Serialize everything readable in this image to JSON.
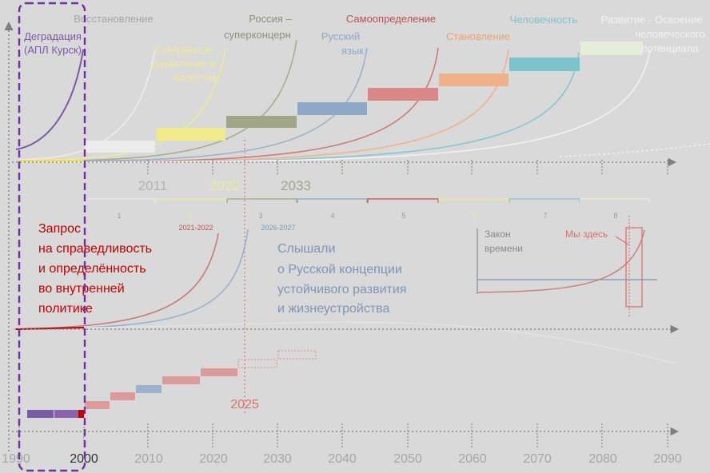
{
  "stages": {
    "degradation": "Деградация",
    "degradation_note": "(АПЛ Курск)",
    "restoration": "Восстановление",
    "sovereignty_l1": "Суверенное",
    "sovereignty_l2": "управление и",
    "sovereignty_l3": "развитие",
    "russia_l1": "Россия –",
    "russia_l2": "суперконцерн",
    "language_l1": "Русский",
    "language_l2": "язык",
    "selfdetermination": "Самоопределение",
    "formation": "Становление",
    "humanity": "Человечность",
    "potential_l1": "Развитие - Освоение",
    "potential_l2": "человеческого",
    "potential_l3": "потенциала"
  },
  "milestones": {
    "m2011": "2011",
    "m2022": "2022",
    "m2033": "2033"
  },
  "cycles": [
    "1",
    "2",
    "3",
    "4",
    "5",
    "6",
    "7",
    "8"
  ],
  "lower_labels": {
    "p2021": "2021-2022",
    "p2026": "2026-2027",
    "y2025": "2025"
  },
  "request": {
    "l1": "Запрос",
    "l2": "на справедливость",
    "l3": "и определённость",
    "l4": "во внутренней",
    "l5": "политике"
  },
  "heard": {
    "l1": "Слышали",
    "l2": "о Русской концепции",
    "l3": "устойчивого развития",
    "l4": "и жизнеустройства"
  },
  "law": {
    "l1": "Закон",
    "l2": "времени",
    "here": "Мы здесь"
  },
  "axis_years": [
    "1990",
    "2000",
    "2010",
    "2020",
    "2030",
    "2040",
    "2050",
    "2060",
    "2070",
    "2080",
    "2090"
  ],
  "colors": {
    "purple": "#7b5aa6",
    "red": "#c0504d",
    "blue": "#8fa8c8",
    "olive": "#a0a686",
    "yellow": "#f0ea8c",
    "orange": "#f0b088",
    "teal": "#7cc4cc",
    "green": "#e4eed8",
    "axis": "#808080",
    "dashed_frame": "#7030a0"
  }
}
